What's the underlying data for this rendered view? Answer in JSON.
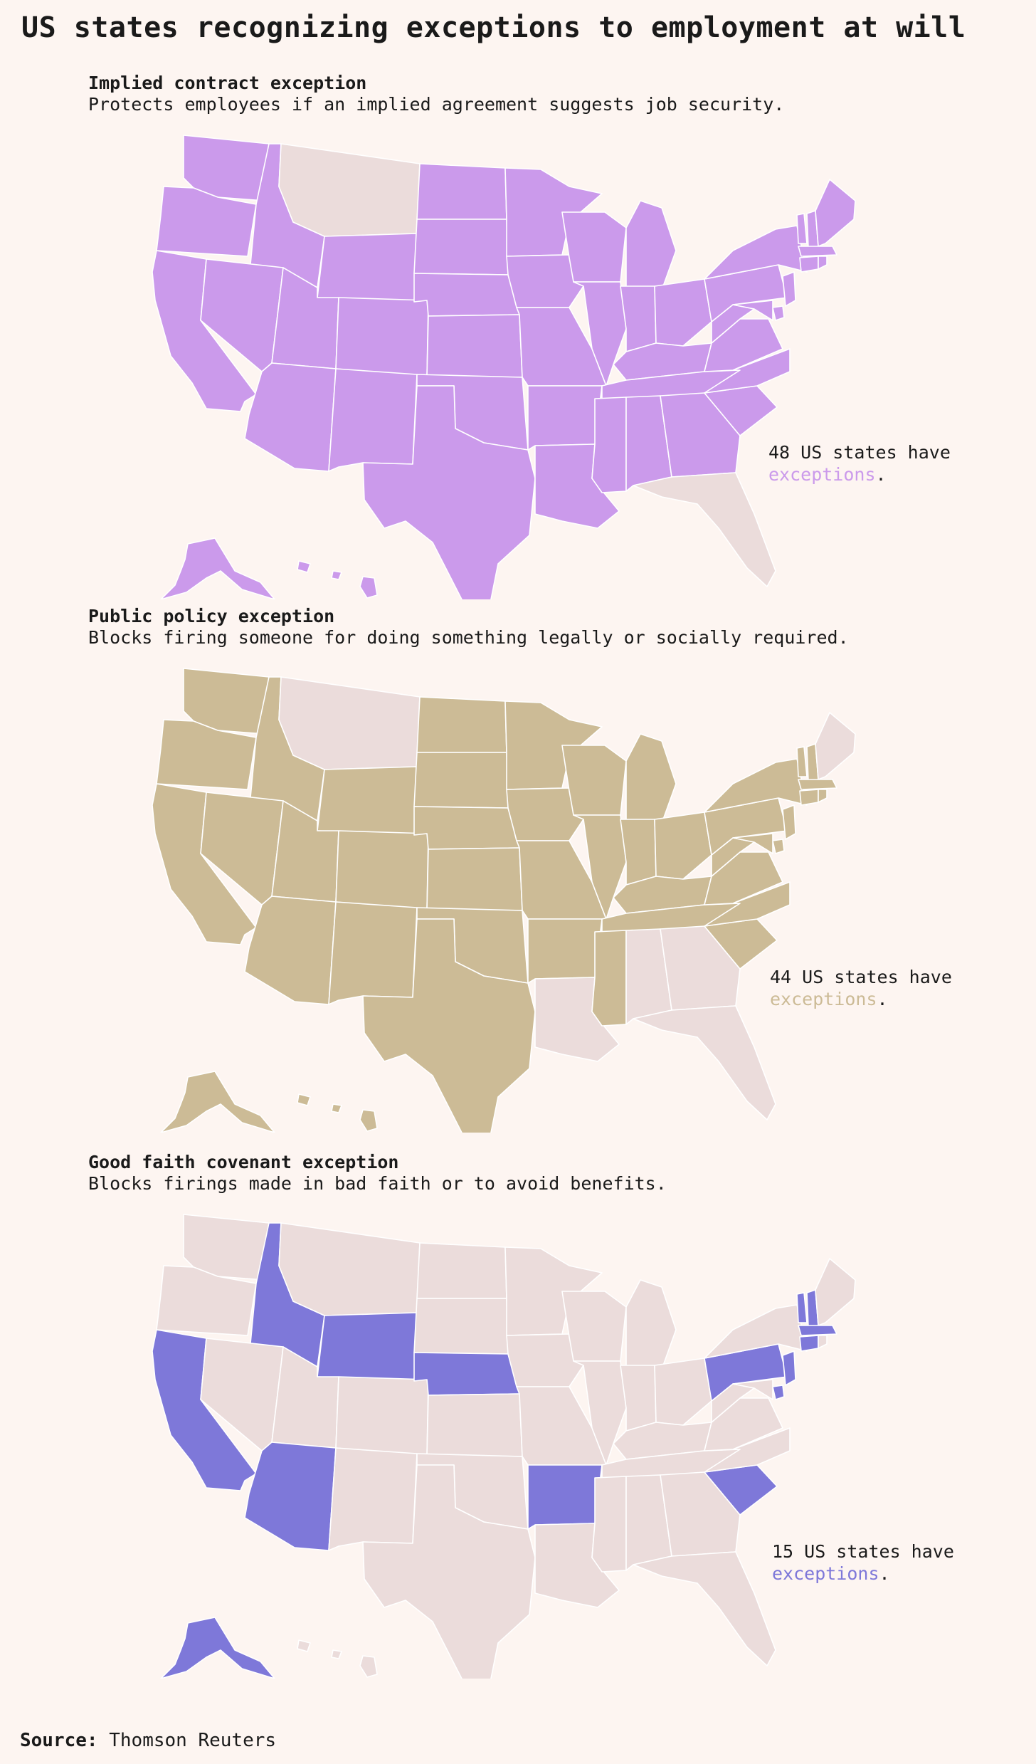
{
  "title": "US states recognizing exceptions to employment at will",
  "colors": {
    "background": "#fdf5f1",
    "no_exception": "#ebdcdb",
    "implied_contract": "#cb9aeb",
    "public_policy": "#ccbb96",
    "good_faith": "#7e78d9"
  },
  "panels": [
    {
      "heading": "Implied contract exception",
      "description": "Protects employees if an implied agreement suggests job security.",
      "callout_prefix": "48 US states have",
      "callout_highlight": "exceptions",
      "callout_suffix": ".",
      "highlight_color": "#cb9aeb"
    },
    {
      "heading": "Public policy exception",
      "description": "Blocks firing someone for doing something legally or socially required.",
      "callout_prefix": "44 US states have",
      "callout_highlight": "exceptions",
      "callout_suffix": ".",
      "highlight_color": "#ccbb96"
    },
    {
      "heading": "Good faith covenant exception",
      "description": "Blocks firings made in bad faith or to avoid benefits.",
      "callout_prefix": "15 US states have",
      "callout_highlight": "exceptions",
      "callout_suffix": ".",
      "highlight_color": "#7e78d9"
    }
  ],
  "source": {
    "label": "Source:",
    "text": "Thomson Reuters"
  }
}
